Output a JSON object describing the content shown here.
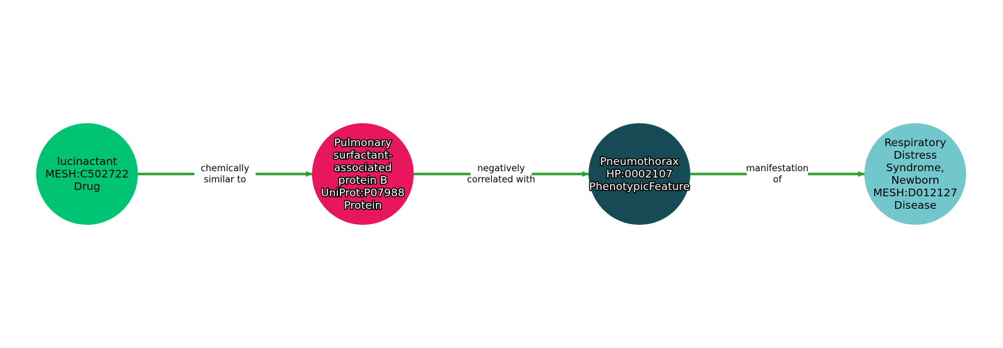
{
  "nodes": [
    {
      "id": "n1",
      "lines": [
        "lucinactant",
        "MESH:C502722",
        "Drug"
      ],
      "color": "#00c473",
      "text_color": "#000000",
      "halo": false
    },
    {
      "id": "n2",
      "lines": [
        "Pulmonary",
        "surfactant-",
        "associated",
        "protein B",
        "UniProt:P07988",
        "Protein"
      ],
      "color": "#e8175d",
      "text_color": "#ffffff",
      "halo": true
    },
    {
      "id": "n3",
      "lines": [
        "Pneumothorax",
        "HP:0002107",
        "PhenotypicFeature"
      ],
      "color": "#164b56",
      "text_color": "#ffffff",
      "halo": true
    },
    {
      "id": "n4",
      "lines": [
        "Respiratory",
        "Distress",
        "Syndrome,",
        "Newborn",
        "MESH:D012127",
        "Disease"
      ],
      "color": "#72c7cc",
      "text_color": "#000000",
      "halo": false
    }
  ],
  "edges": [
    {
      "from": "n1",
      "to": "n2",
      "lines": [
        "chemically",
        "similar to"
      ]
    },
    {
      "from": "n2",
      "to": "n3",
      "lines": [
        "negatively",
        "correlated with"
      ]
    },
    {
      "from": "n3",
      "to": "n4",
      "lines": [
        "manifestation",
        "of"
      ]
    }
  ],
  "edge_color": "#2ca02c"
}
